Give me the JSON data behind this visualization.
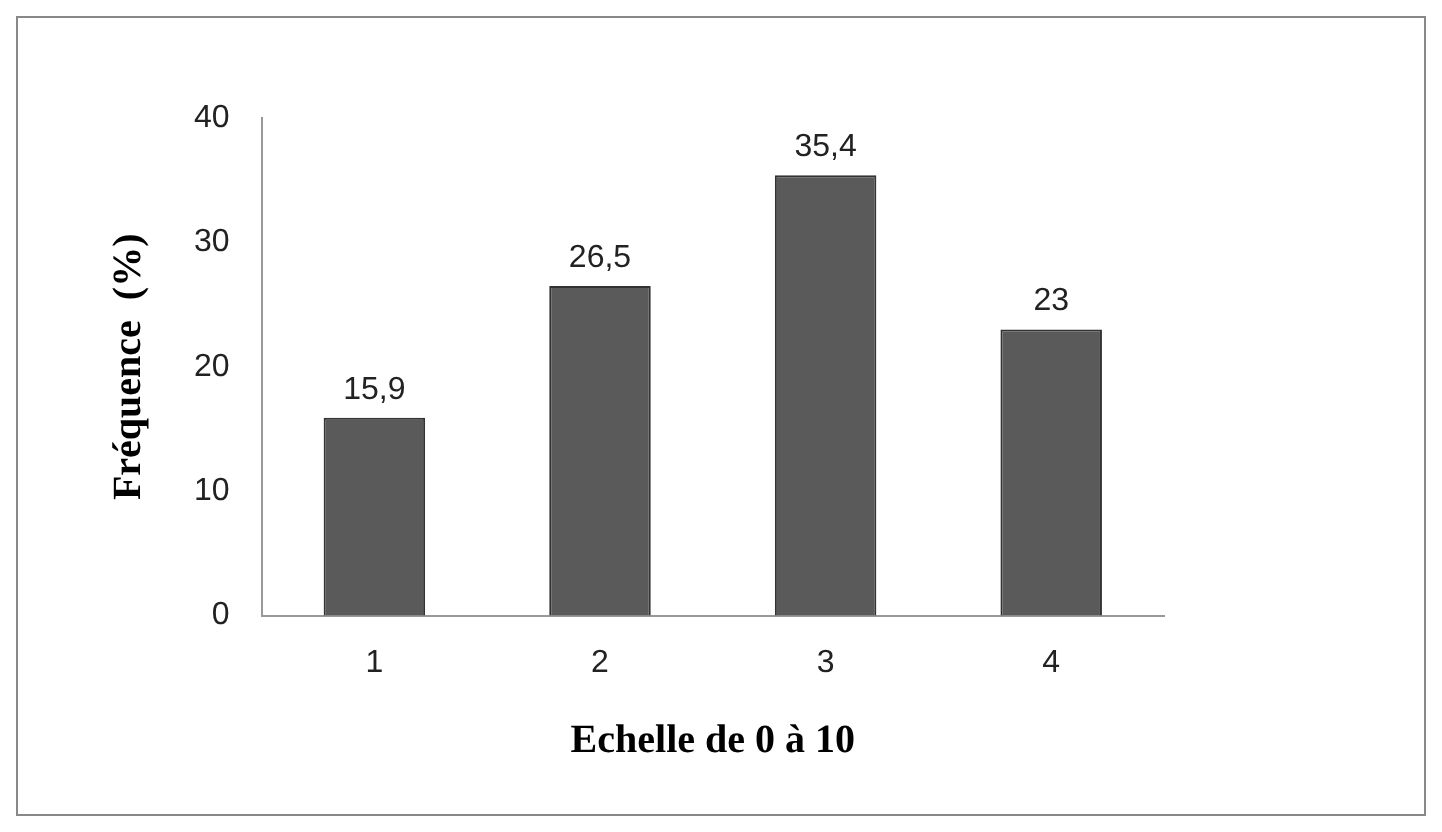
{
  "chart_data": {
    "type": "bar",
    "xlabel": "Echelle de 0 à 10",
    "ylabel": "Fréquence  (%)",
    "categories": [
      "1",
      "2",
      "3",
      "4"
    ],
    "values": [
      15.9,
      26.5,
      35.4,
      23
    ],
    "value_labels": [
      "15,9",
      "26,5",
      "35,4",
      "23"
    ],
    "color": "#5a5a5a",
    "ylim": [
      0,
      40
    ],
    "yticks": [
      0,
      10,
      20,
      30,
      40
    ],
    "grid": false,
    "legend": false
  }
}
